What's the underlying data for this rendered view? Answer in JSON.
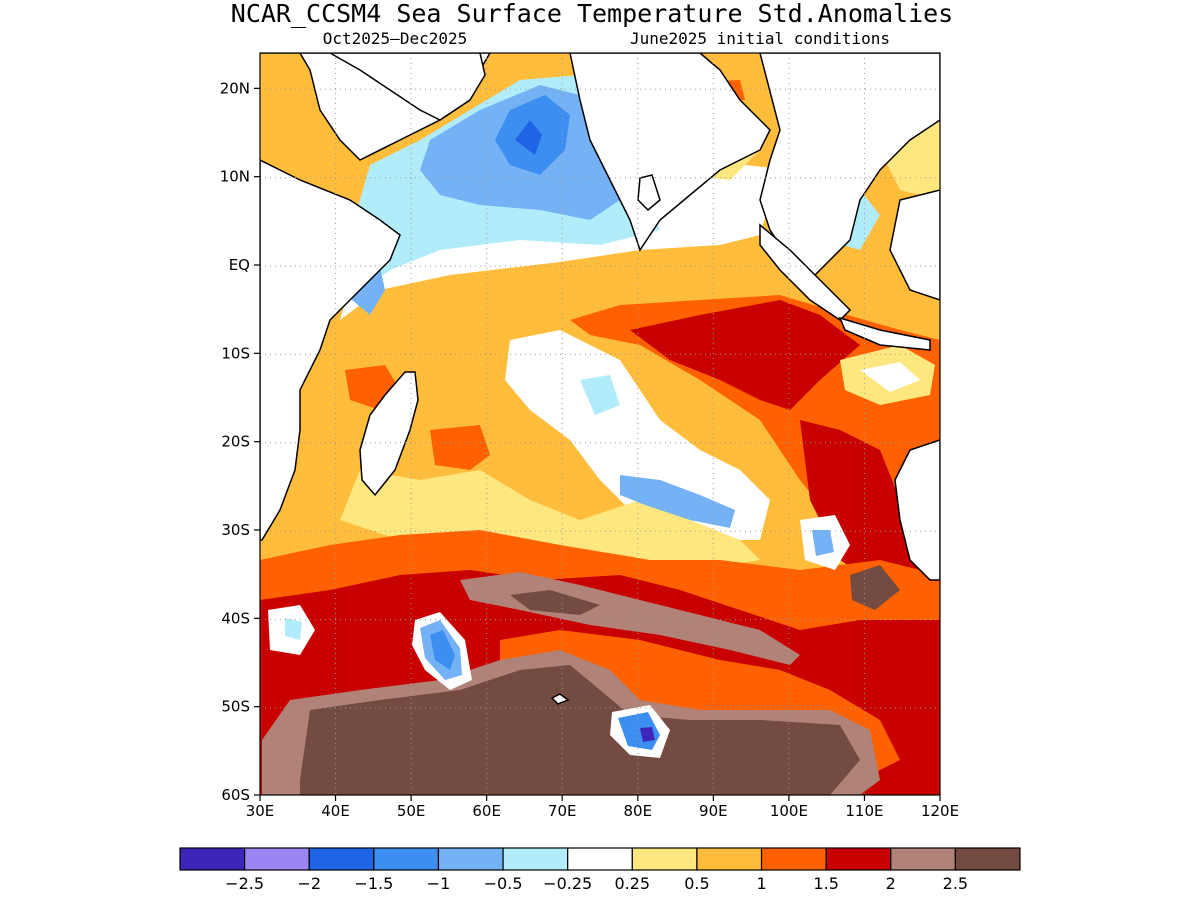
{
  "title": "NCAR_CCSM4 Sea Surface Temperature Std.Anomalies",
  "subtitle_left": "Oct2025–Dec2025",
  "subtitle_right": "June2025 initial conditions",
  "map": {
    "lon_range": [
      30,
      120
    ],
    "lat_range": [
      -60,
      24
    ],
    "lon_ticks": [
      "30E",
      "40E",
      "50E",
      "60E",
      "70E",
      "80E",
      "90E",
      "100E",
      "110E",
      "120E"
    ],
    "lat_ticks": [
      "20N",
      "10N",
      "EQ",
      "10S",
      "20S",
      "30S",
      "40S",
      "50S",
      "60S"
    ],
    "grid": "dotted"
  },
  "colorbar": {
    "colors": [
      "#3c25b9",
      "#9a85f2",
      "#1f64e6",
      "#3c8ef0",
      "#75b2f5",
      "#b1ecfa",
      "#ffffff",
      "#ffe77f",
      "#ffbd3b",
      "#ff6000",
      "#c90000",
      "#b18277",
      "#734b40"
    ],
    "labels": [
      "−2.5",
      "−2",
      "−1.5",
      "−1",
      "−0.5",
      "−0.25",
      "0.25",
      "0.5",
      "1",
      "1.5",
      "2",
      "2.5"
    ]
  }
}
